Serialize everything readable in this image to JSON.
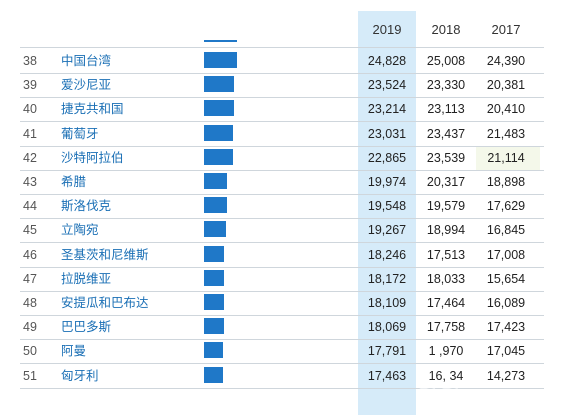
{
  "chart_data": {
    "type": "table",
    "columns": [
      "2019",
      "2018",
      "2017"
    ],
    "highlighted_column": "2019",
    "bar_color": "#1f78c8",
    "highlight_color": "#d6ebf9",
    "link_color": "#1a6fb5",
    "rows": [
      {
        "rank": "38",
        "country": "中国台湾",
        "v2019": "24,828",
        "v2018": "25,008",
        "v2017": "24,390",
        "value": 24828
      },
      {
        "rank": "39",
        "country": "爱沙尼亚",
        "v2019": "23,524",
        "v2018": "23,330",
        "v2017": "20,381",
        "value": 23524
      },
      {
        "rank": "40",
        "country": "捷克共和国",
        "v2019": "23,214",
        "v2018": "23,113",
        "v2017": "20,410",
        "value": 23214
      },
      {
        "rank": "41",
        "country": "葡萄牙",
        "v2019": "23,031",
        "v2018": "23,437",
        "v2017": "21,483",
        "value": 23031
      },
      {
        "rank": "42",
        "country": "沙特阿拉伯",
        "v2019": "22,865",
        "v2018": "23,539",
        "v2017": "21,114",
        "value": 22865
      },
      {
        "rank": "43",
        "country": "希腊",
        "v2019": "19,974",
        "v2018": "20,317",
        "v2017": "18,898",
        "value": 19974
      },
      {
        "rank": "44",
        "country": "斯洛伐克",
        "v2019": "19,548",
        "v2018": "19,579",
        "v2017": "17,629",
        "value": 19548
      },
      {
        "rank": "45",
        "country": "立陶宛",
        "v2019": "19,267",
        "v2018": "18,994",
        "v2017": "16,845",
        "value": 19267
      },
      {
        "rank": "46",
        "country": "圣基茨和尼维斯",
        "v2019": "18,246",
        "v2018": "17,513",
        "v2017": "17,008",
        "value": 18246
      },
      {
        "rank": "47",
        "country": "拉脱维亚",
        "v2019": "18,172",
        "v2018": "18,033",
        "v2017": "15,654",
        "value": 18172
      },
      {
        "rank": "48",
        "country": "安提瓜和巴布达",
        "v2019": "18,109",
        "v2018": "17,464",
        "v2017": "16,089",
        "value": 18109
      },
      {
        "rank": "49",
        "country": "巴巴多斯",
        "v2019": "18,069",
        "v2018": "17,758",
        "v2017": "17,423",
        "value": 18069
      },
      {
        "rank": "50",
        "country": "阿曼",
        "v2019": "17,791",
        "v2018": "1 ,970",
        "v2017": "17,045",
        "value": 17791
      },
      {
        "rank": "51",
        "country": "匈牙利",
        "v2019": "17,463",
        "v2018": "16, 34",
        "v2017": "14,273",
        "value": 17463
      }
    ]
  }
}
